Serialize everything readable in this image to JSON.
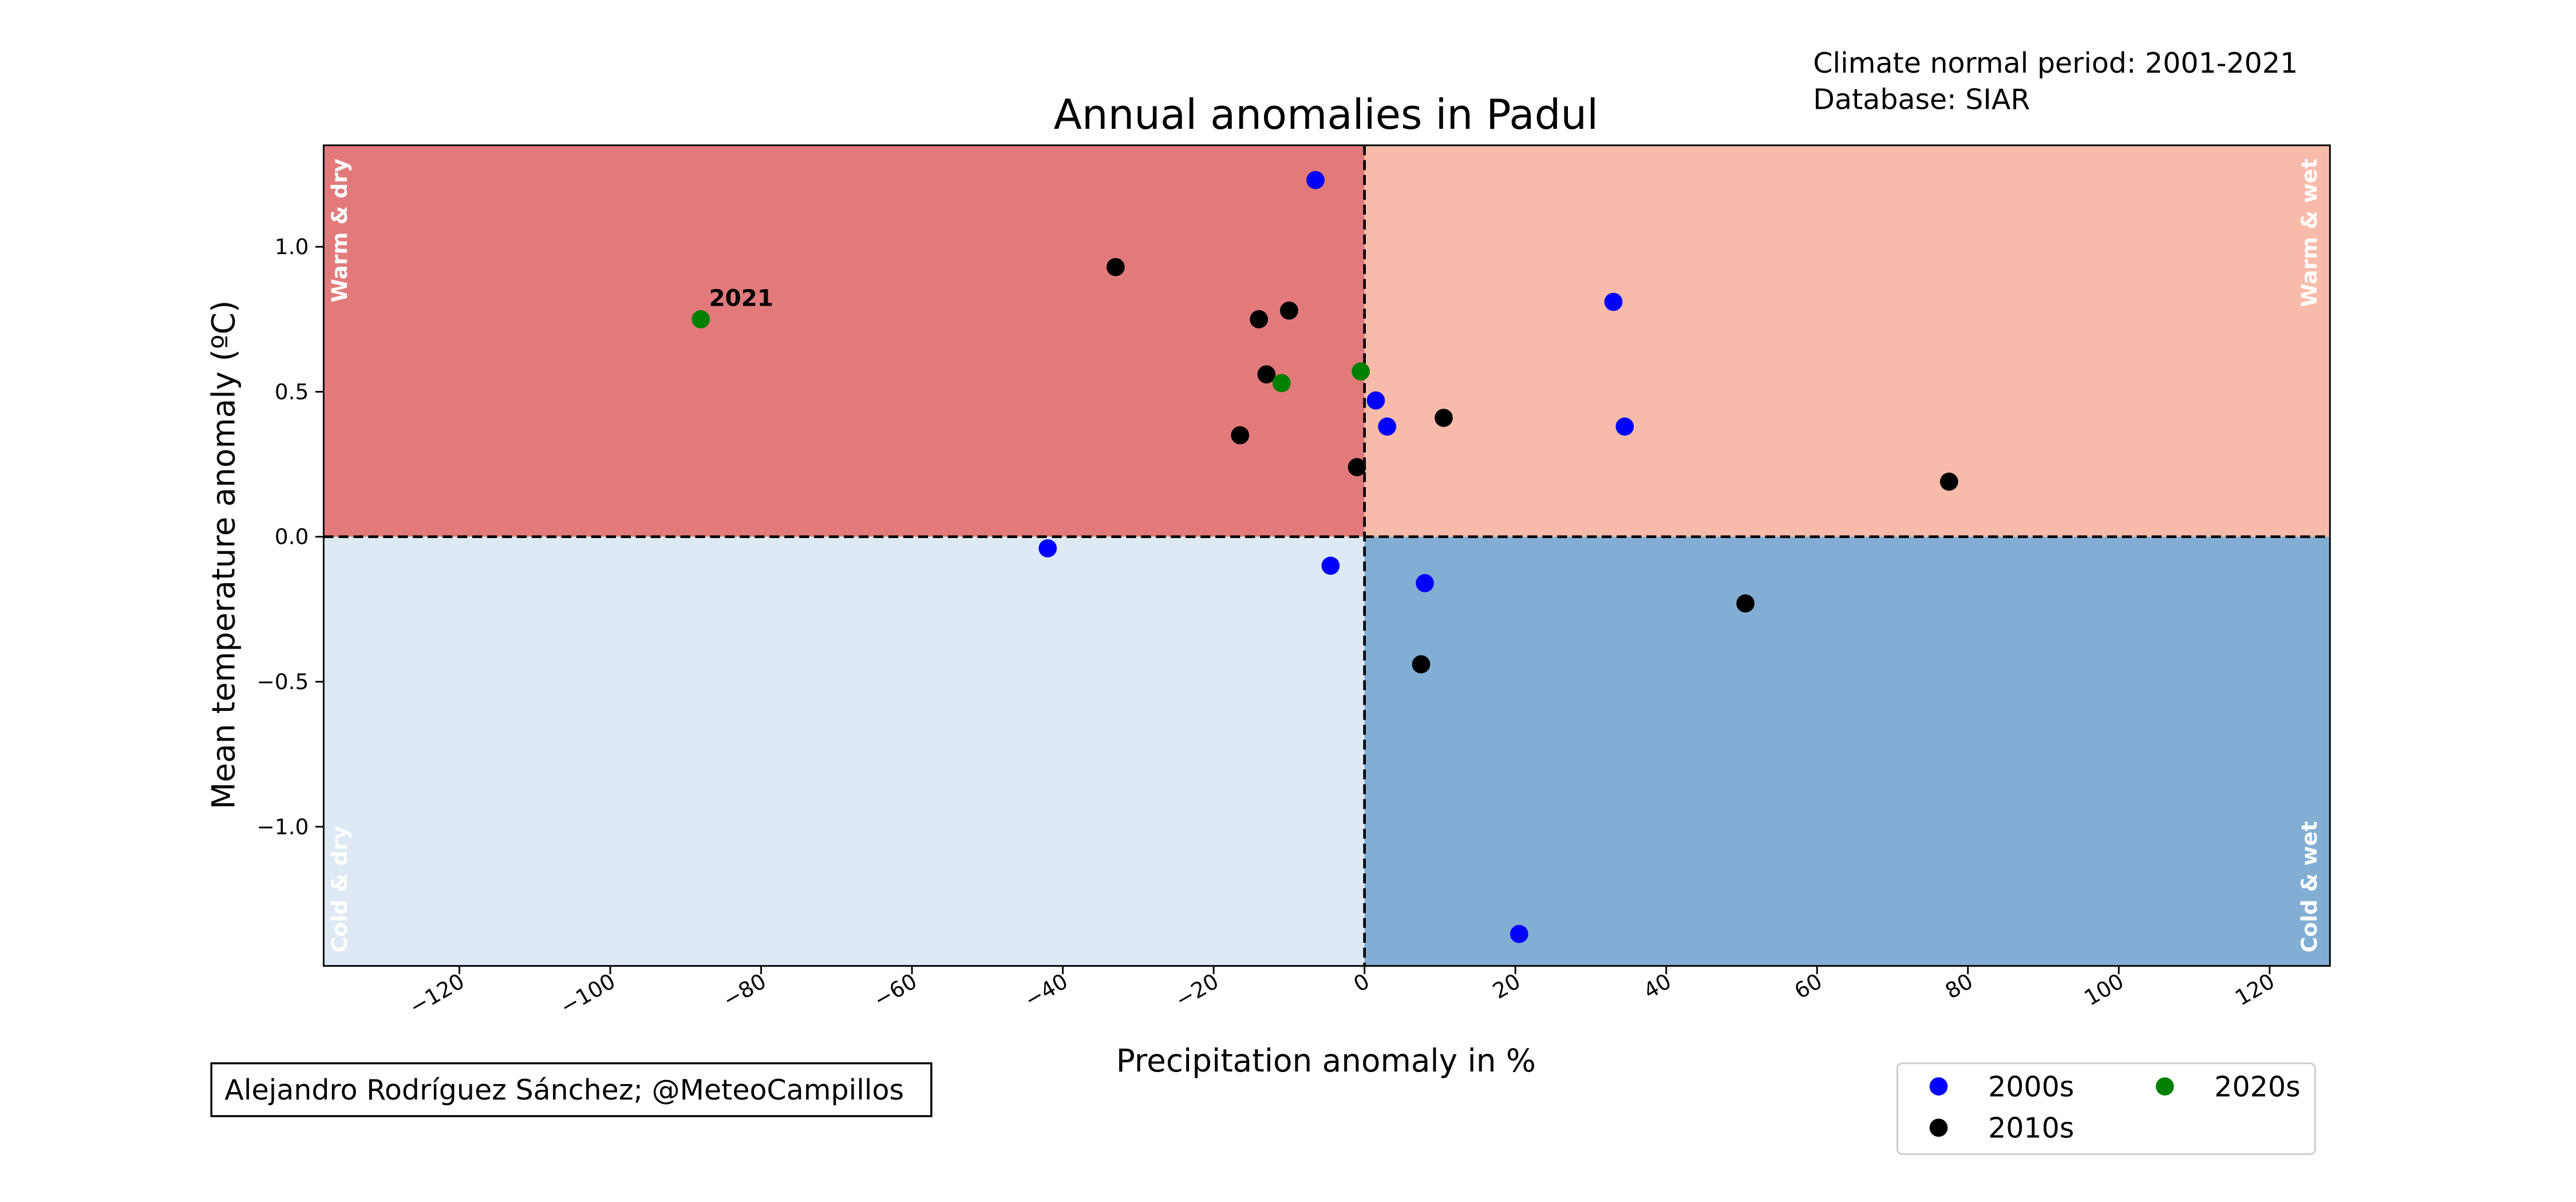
{
  "chart_data": {
    "type": "scatter",
    "title": "Annual anomalies in Padul",
    "xlabel": "Precipitation anomaly in %",
    "ylabel": "Mean temperature anomaly (ºC)",
    "xlim": [
      -138,
      128
    ],
    "ylim": [
      -1.48,
      1.35
    ],
    "xticks": [
      -120,
      -100,
      -80,
      -60,
      -40,
      -20,
      0,
      20,
      40,
      60,
      80,
      100,
      120
    ],
    "xtick_labels": [
      "−120",
      "−100",
      "−80",
      "−60",
      "−40",
      "−20",
      "0",
      "20",
      "40",
      "60",
      "80",
      "100",
      "120"
    ],
    "yticks": [
      -1.0,
      -0.5,
      0.0,
      0.5,
      1.0
    ],
    "ytick_labels": [
      "−1.0",
      "−0.5",
      "0.0",
      "0.5",
      "1.0"
    ],
    "grid": false,
    "quadrants": [
      {
        "label": "Warm & dry",
        "color": "#e27a7c",
        "xrange": [
          -138,
          0
        ],
        "yrange": [
          0,
          1.35
        ],
        "label_corner": "top-left"
      },
      {
        "label": "Warm & wet",
        "color": "#f8bba9",
        "xrange": [
          0,
          128
        ],
        "yrange": [
          0,
          1.35
        ],
        "label_corner": "top-right"
      },
      {
        "label": "Cold & dry",
        "color": "#dde9f5",
        "xrange": [
          -138,
          0
        ],
        "yrange": [
          -1.48,
          0
        ],
        "label_corner": "bottom-left"
      },
      {
        "label": "Cold & wet",
        "color": "#82aed4",
        "xrange": [
          0,
          128
        ],
        "yrange": [
          -1.48,
          0
        ],
        "label_corner": "bottom-right"
      }
    ],
    "series": [
      {
        "name": "2000s",
        "color": "#0000ff",
        "points": [
          {
            "x": -6.5,
            "y": 1.23
          },
          {
            "x": 33,
            "y": 0.81
          },
          {
            "x": 1.5,
            "y": 0.47
          },
          {
            "x": 3,
            "y": 0.38
          },
          {
            "x": 34.5,
            "y": 0.38
          },
          {
            "x": -42,
            "y": -0.04
          },
          {
            "x": -4.5,
            "y": -0.1
          },
          {
            "x": 8,
            "y": -0.16
          },
          {
            "x": 20.5,
            "y": -1.37
          }
        ]
      },
      {
        "name": "2010s",
        "color": "#000000",
        "points": [
          {
            "x": -33,
            "y": 0.93
          },
          {
            "x": -14,
            "y": 0.75
          },
          {
            "x": -10,
            "y": 0.78
          },
          {
            "x": -13,
            "y": 0.56
          },
          {
            "x": -16.5,
            "y": 0.35
          },
          {
            "x": -1,
            "y": 0.24
          },
          {
            "x": 10.5,
            "y": 0.41
          },
          {
            "x": 77.5,
            "y": 0.19
          },
          {
            "x": 50.5,
            "y": -0.23
          },
          {
            "x": 7.5,
            "y": -0.44
          }
        ]
      },
      {
        "name": "2020s",
        "color": "#008000",
        "points": [
          {
            "x": -88,
            "y": 0.75,
            "label": "2021"
          },
          {
            "x": -11,
            "y": 0.53
          },
          {
            "x": -0.5,
            "y": 0.57
          }
        ]
      }
    ],
    "legend": {
      "placement": "lower-right",
      "columns": 2
    },
    "annotations": {
      "period": "Climate normal period: 2001-2021",
      "database": "Database: SIAR",
      "credit": "Alejandro Rodríguez Sánchez; @MeteoCampillos"
    }
  }
}
